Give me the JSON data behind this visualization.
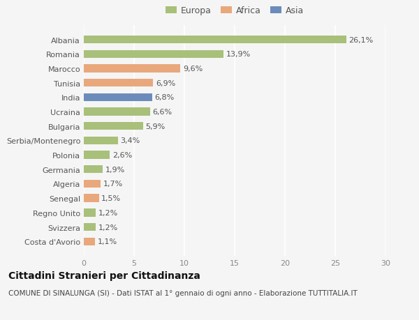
{
  "categories": [
    "Albania",
    "Romania",
    "Marocco",
    "Tunisia",
    "India",
    "Ucraina",
    "Bulgaria",
    "Serbia/Montenegro",
    "Polonia",
    "Germania",
    "Algeria",
    "Senegal",
    "Regno Unito",
    "Svizzera",
    "Costa d'Avorio"
  ],
  "values": [
    26.1,
    13.9,
    9.6,
    6.9,
    6.8,
    6.6,
    5.9,
    3.4,
    2.6,
    1.9,
    1.7,
    1.5,
    1.2,
    1.2,
    1.1
  ],
  "labels": [
    "26,1%",
    "13,9%",
    "9,6%",
    "6,9%",
    "6,8%",
    "6,6%",
    "5,9%",
    "3,4%",
    "2,6%",
    "1,9%",
    "1,7%",
    "1,5%",
    "1,2%",
    "1,2%",
    "1,1%"
  ],
  "continent": [
    "Europa",
    "Europa",
    "Africa",
    "Africa",
    "Asia",
    "Europa",
    "Europa",
    "Europa",
    "Europa",
    "Europa",
    "Africa",
    "Africa",
    "Europa",
    "Europa",
    "Africa"
  ],
  "colors": {
    "Europa": "#a8c07a",
    "Africa": "#e8a87c",
    "Asia": "#6b8cba"
  },
  "legend_order": [
    "Europa",
    "Africa",
    "Asia"
  ],
  "xlim": [
    0,
    30
  ],
  "xticks": [
    0,
    5,
    10,
    15,
    20,
    25,
    30
  ],
  "title": "Cittadini Stranieri per Cittadinanza",
  "subtitle": "COMUNE DI SINALUNGA (SI) - Dati ISTAT al 1° gennaio di ogni anno - Elaborazione TUTTITALIA.IT",
  "bg_color": "#f5f5f5",
  "grid_color": "#ffffff",
  "title_fontsize": 10,
  "subtitle_fontsize": 7.5,
  "label_fontsize": 8,
  "tick_fontsize": 8,
  "legend_fontsize": 9,
  "bar_height": 0.55
}
